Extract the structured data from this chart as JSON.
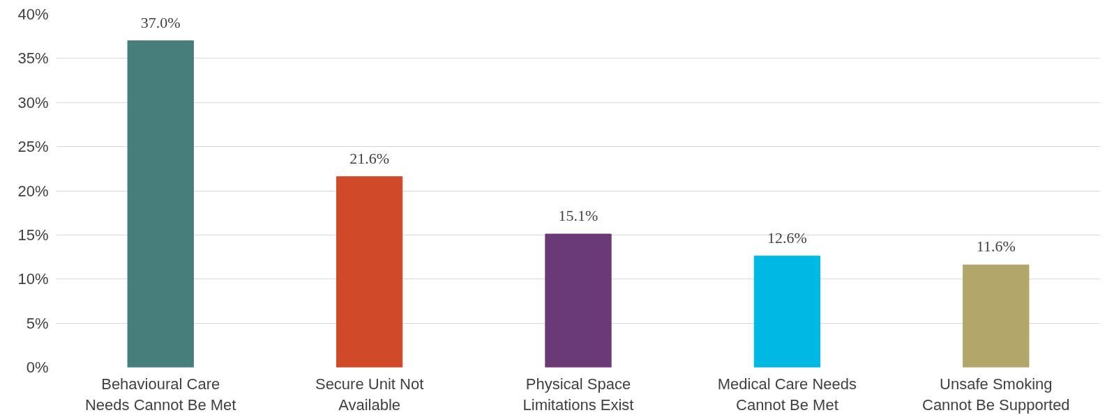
{
  "chart_data": {
    "type": "bar",
    "categories": [
      "Behavioural Care Needs Cannot Be Met",
      "Secure Unit Not Available",
      "Physical Space Limitations Exist",
      "Medical Care Needs Cannot Be Met",
      "Unsafe Smoking Cannot Be Supported"
    ],
    "values": [
      37.0,
      21.6,
      15.1,
      12.6,
      11.6
    ],
    "colors": [
      "#467e7c",
      "#d04a29",
      "#6a3a77",
      "#00b8e4",
      "#b3a66b"
    ],
    "value_labels": [
      "37.0%",
      "21.6%",
      "15.1%",
      "12.6%",
      "11.6%"
    ],
    "ylim": [
      0,
      40
    ],
    "yticks": [
      {
        "value": 0,
        "label": "0%"
      },
      {
        "value": 5,
        "label": "5%"
      },
      {
        "value": 10,
        "label": "10%"
      },
      {
        "value": 15,
        "label": "15%"
      },
      {
        "value": 20,
        "label": "20%"
      },
      {
        "value": 25,
        "label": "25%"
      },
      {
        "value": 30,
        "label": "30%"
      },
      {
        "value": 35,
        "label": "35%"
      },
      {
        "value": 40,
        "label": "40%"
      }
    ],
    "grid": "y"
  }
}
